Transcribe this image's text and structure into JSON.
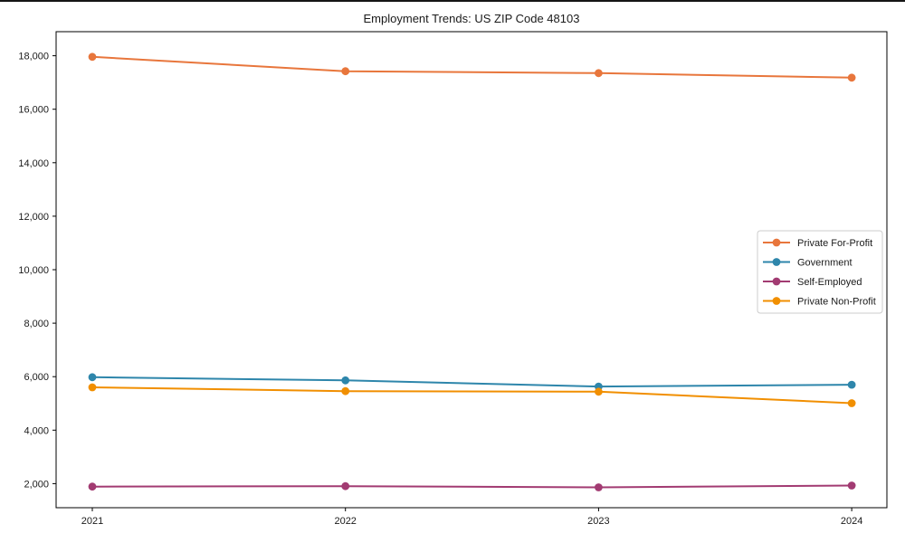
{
  "figure": {
    "title": "Employment Trends: US ZIP Code 48103",
    "background_color": "#ffffff",
    "top_edge_color": "#151515",
    "axis_color": "#000000",
    "tick_text_color": "#1a1a1a",
    "legend_border_color": "#cccccc"
  },
  "chart_data": {
    "type": "line",
    "title": "Employment Trends: US ZIP Code 48103",
    "xlabel": "",
    "ylabel": "",
    "x": [
      2021,
      2022,
      2023,
      2024
    ],
    "xtick_labels": [
      "2021",
      "2022",
      "2023",
      "2024"
    ],
    "series": [
      {
        "name": "Private For-Profit",
        "color": "#E8763C",
        "values": [
          17960,
          17420,
          17350,
          17180
        ]
      },
      {
        "name": "Government",
        "color": "#2E86AB",
        "values": [
          5980,
          5860,
          5630,
          5700
        ]
      },
      {
        "name": "Self-Employed",
        "color": "#A23B72",
        "values": [
          1890,
          1905,
          1860,
          1930
        ]
      },
      {
        "name": "Private Non-Profit",
        "color": "#F18F01",
        "values": [
          5600,
          5460,
          5440,
          5010
        ]
      }
    ],
    "ytick_values": [
      2000,
      4000,
      6000,
      8000,
      10000,
      12000,
      14000,
      16000,
      18000
    ],
    "ytick_labels": [
      "2,000",
      "4,000",
      "6,000",
      "8,000",
      "10,000",
      "12,000",
      "14,000",
      "16,000",
      "18,000"
    ],
    "ylim": [
      1100,
      18900
    ],
    "xlim": [
      2020.857,
      2024.139
    ],
    "grid": false,
    "legend_position": "center-right",
    "marker": "circle"
  }
}
